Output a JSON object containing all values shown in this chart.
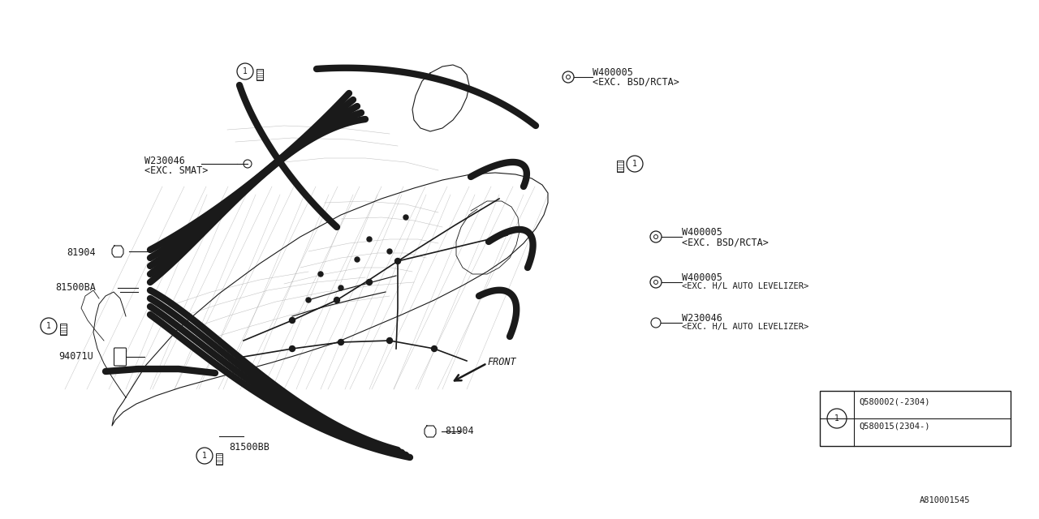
{
  "bg_color": "#ffffff",
  "line_color": "#1a1a1a",
  "diagram_id": "A810001545",
  "figsize": [
    12.8,
    6.4
  ],
  "dpi": 100,
  "labels": {
    "W230046_smat_line1": "W230046",
    "W230046_smat_line2": "<EXC. SMAT>",
    "W400005_top_line1": "W400005",
    "W400005_top_line2": "<EXC. BSD/RCTA>",
    "W400005_mid_line1": "W400005",
    "W400005_mid_line2": "<EXC. BSD/RCTA>",
    "W400005_low_line1": "W400005",
    "W400005_low_line2": "<EXC. H/L AUTO LEVELIZER>",
    "W230046_low_line1": "W230046",
    "W230046_low_line2": "<EXC. H/L AUTO LEVELIZER>",
    "part_81904_top": "81904",
    "part_81904_bot": "81904",
    "part_81500BA": "81500BA",
    "part_81500BB": "81500BB",
    "part_94071U": "94071U",
    "front_text": "FRONT",
    "legend_part1": "Q580002(-2304)",
    "legend_part2": "Q580015(2304-)",
    "diagram_id_text": "A810001545"
  }
}
